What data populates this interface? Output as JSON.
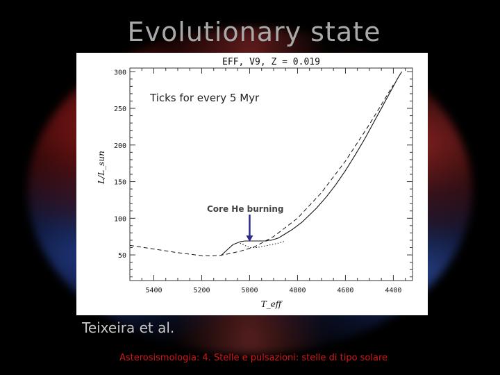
{
  "slide": {
    "title": "Evolutionary state",
    "credit": "Teixeira et al.",
    "footer": "Asterosismologia: 4. Stelle e pulsazioni: stelle di tipo solare"
  },
  "colors": {
    "background": "#000000",
    "title": "#a9a9a9",
    "footer": "#d01818",
    "arrow": "#2b2b8f"
  },
  "chart_data": {
    "type": "line",
    "title": "EFF, V9, Z = 0.019",
    "xlabel": "T_eff",
    "ylabel": "L/L_sun",
    "xlim": [
      5500,
      4320
    ],
    "ylim": [
      15,
      305
    ],
    "x_reversed": true,
    "xticks": [
      5400,
      5200,
      5000,
      4800,
      4600,
      4400
    ],
    "yticks": [
      50,
      100,
      150,
      200,
      250,
      300
    ],
    "grid": false,
    "annotations": [
      {
        "text": "Ticks for every 5 Myr"
      },
      {
        "text": "Core He burning",
        "arrow_to": [
          5000,
          67
        ]
      }
    ],
    "series": [
      {
        "style": "dashed",
        "x": [
          5500,
          5400,
          5300,
          5200,
          5130,
          5080,
          5040,
          4980,
          4900,
          4800,
          4700,
          4600,
          4500,
          4400
        ],
        "y": [
          63,
          58,
          53,
          49,
          49,
          52,
          55,
          61,
          75,
          100,
          135,
          178,
          228,
          282
        ]
      },
      {
        "style": "solid",
        "x": [
          5120,
          5110,
          5090,
          5070,
          5040,
          5020,
          4980,
          4950,
          4940,
          4930,
          4920,
          4910,
          4900,
          4890,
          4880,
          4860,
          4820,
          4780,
          4720,
          4680,
          4640,
          4600,
          4560,
          4520,
          4480,
          4440,
          4400,
          4380,
          4365
        ],
        "y": [
          49,
          52,
          58,
          64,
          68,
          69,
          69,
          69,
          69,
          69,
          70,
          70,
          71,
          72,
          73,
          77,
          85,
          95,
          114,
          129,
          146,
          165,
          186,
          208,
          232,
          256,
          280,
          292,
          300
        ]
      },
      {
        "style": "dotted",
        "x": [
          5040,
          5020,
          5000,
          4970,
          4940,
          4910,
          4880,
          4850
        ],
        "y": [
          66,
          63,
          60,
          60,
          62,
          64,
          66,
          69
        ]
      }
    ]
  }
}
